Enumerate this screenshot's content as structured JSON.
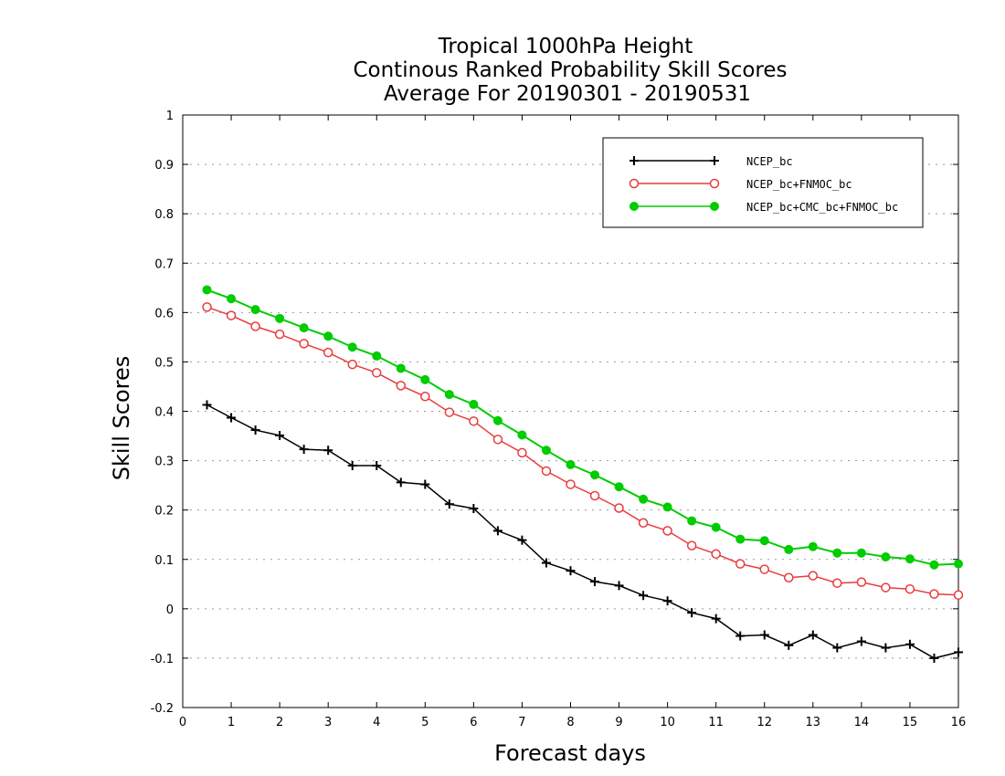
{
  "chart_data": {
    "type": "line",
    "title": [
      "Tropical 1000hPa Height",
      "Continous Ranked Probability Skill Scores",
      "Average For 20190301 - 20190531"
    ],
    "xlabel": "Forecast days",
    "ylabel": "Skill Scores",
    "xlim": [
      0,
      16
    ],
    "ylim": [
      -0.2,
      1
    ],
    "xticks": [
      0,
      1,
      2,
      3,
      4,
      5,
      6,
      7,
      8,
      9,
      10,
      11,
      12,
      13,
      14,
      15,
      16
    ],
    "yticks": [
      -0.2,
      -0.1,
      0,
      0.1,
      0.2,
      0.3,
      0.4,
      0.5,
      0.6,
      0.7,
      0.8,
      0.9,
      1
    ],
    "ytick_labels": [
      "-0.2",
      "-0.1",
      "0",
      "0.1",
      "0.2",
      "0.3",
      "0.4",
      "0.5",
      "0.6",
      "0.7",
      "0.8",
      "0.9",
      "1"
    ],
    "grid": "horizontal-dotted",
    "legend_position": "top-right",
    "x": [
      0.5,
      1,
      1.5,
      2,
      2.5,
      3,
      3.5,
      4,
      4.5,
      5,
      5.5,
      6,
      6.5,
      7,
      7.5,
      8,
      8.5,
      9,
      9.5,
      10,
      10.5,
      11,
      11.5,
      12,
      12.5,
      13,
      13.5,
      14,
      14.5,
      15,
      15.5,
      16
    ],
    "series": [
      {
        "name": "NCEP_bc",
        "color": "#000000",
        "marker": "plus",
        "values": [
          0.413,
          0.387,
          0.362,
          0.351,
          0.323,
          0.321,
          0.29,
          0.29,
          0.256,
          0.252,
          0.212,
          0.203,
          0.158,
          0.139,
          0.093,
          0.077,
          0.055,
          0.047,
          0.027,
          0.016,
          -0.008,
          -0.02,
          -0.055,
          -0.053,
          -0.074,
          -0.053,
          -0.079,
          -0.066,
          -0.079,
          -0.072,
          -0.1,
          -0.088
        ]
      },
      {
        "name": "NCEP_bc+FNMOC_bc",
        "color": "#e83c3c",
        "marker": "open-circle",
        "values": [
          0.611,
          0.594,
          0.572,
          0.556,
          0.537,
          0.519,
          0.495,
          0.478,
          0.452,
          0.43,
          0.398,
          0.38,
          0.343,
          0.316,
          0.279,
          0.252,
          0.229,
          0.204,
          0.174,
          0.158,
          0.128,
          0.111,
          0.091,
          0.08,
          0.063,
          0.067,
          0.052,
          0.054,
          0.043,
          0.04,
          0.03,
          0.028
        ]
      },
      {
        "name": "NCEP_bc+CMC_bc+FNMOC_bc",
        "color": "#00cc00",
        "marker": "filled-circle",
        "values": [
          0.646,
          0.628,
          0.606,
          0.588,
          0.569,
          0.552,
          0.53,
          0.512,
          0.487,
          0.464,
          0.434,
          0.414,
          0.381,
          0.352,
          0.321,
          0.292,
          0.271,
          0.247,
          0.222,
          0.206,
          0.178,
          0.165,
          0.141,
          0.138,
          0.12,
          0.126,
          0.113,
          0.113,
          0.105,
          0.101,
          0.089,
          0.091
        ]
      }
    ]
  }
}
